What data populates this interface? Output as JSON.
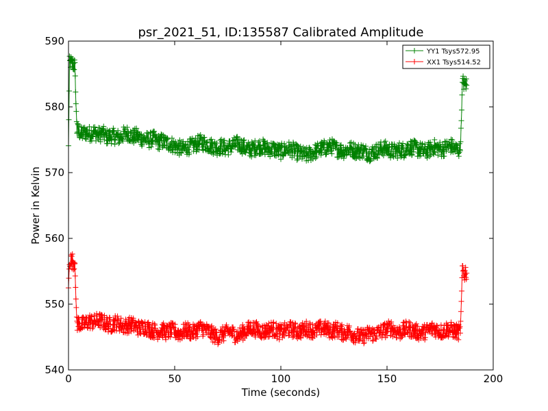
{
  "chart_data": {
    "type": "line",
    "title": "psr_2021_51, ID:135587 Calibrated Amplitude",
    "xlabel": "Time (seconds)",
    "ylabel": "Power in Kelvin",
    "xlim": [
      0,
      200
    ],
    "ylim": [
      540,
      590
    ],
    "xticks": [
      0,
      50,
      100,
      150,
      200
    ],
    "yticks": [
      540,
      550,
      560,
      570,
      580,
      590
    ],
    "grid": false,
    "legend_position": "top-right",
    "marker": "+",
    "series": [
      {
        "name": "YY1 Tsys572.95",
        "color": "#008000",
        "x": [
          0,
          0.5,
          1,
          1.5,
          2,
          2.5,
          3,
          3.5,
          4,
          5,
          6,
          8,
          10,
          12,
          14,
          16,
          18,
          20,
          22,
          24,
          26,
          28,
          30,
          32,
          34,
          36,
          38,
          40,
          42,
          44,
          46,
          48,
          50,
          52,
          54,
          56,
          58,
          60,
          62,
          64,
          66,
          68,
          70,
          72,
          74,
          76,
          78,
          80,
          82,
          84,
          86,
          88,
          90,
          92,
          94,
          96,
          98,
          100,
          102,
          104,
          106,
          108,
          110,
          112,
          114,
          116,
          118,
          120,
          122,
          124,
          126,
          128,
          130,
          132,
          134,
          136,
          138,
          140,
          142,
          144,
          146,
          148,
          150,
          152,
          154,
          156,
          158,
          160,
          162,
          164,
          166,
          168,
          170,
          172,
          174,
          176,
          178,
          180,
          182,
          184,
          184.5,
          185,
          185.5,
          186,
          186.5,
          187,
          187.5
        ],
        "values": [
          574,
          586.5,
          586.8,
          586.4,
          586.6,
          586.3,
          586.5,
          580.5,
          576.5,
          576.3,
          575.8,
          576.1,
          575.9,
          576.2,
          575.7,
          576,
          575.4,
          575.6,
          575.5,
          575.3,
          575.8,
          576,
          575.4,
          575.6,
          575.2,
          575.1,
          574.9,
          575.2,
          574.6,
          574.8,
          574.5,
          574.4,
          574,
          573.8,
          573.6,
          573.9,
          574,
          574.3,
          574.6,
          574.5,
          574.2,
          574,
          573.8,
          574,
          573.7,
          573.9,
          574.2,
          574.4,
          574,
          573.6,
          573.5,
          573.8,
          574,
          573.9,
          573.5,
          573.7,
          573.4,
          573.2,
          573.5,
          573.6,
          573.4,
          573,
          572.8,
          572.6,
          572.9,
          573.2,
          573.5,
          573.7,
          573.8,
          574,
          573.6,
          573.4,
          573.3,
          573.6,
          573.5,
          573.2,
          573.4,
          573.1,
          572.9,
          573.2,
          573.4,
          573.7,
          573.6,
          573.3,
          573.2,
          573.5,
          573.4,
          573.9,
          573.8,
          573.6,
          573.4,
          573.2,
          573.5,
          573.9,
          573.7,
          573.5,
          573.9,
          574.1,
          573.6,
          573.4,
          573.5,
          578,
          583.4,
          583.8,
          583.2,
          583.6,
          583.3
        ],
        "noise": 1.2
      },
      {
        "name": "XX1 Tsys514.52",
        "color": "#ff0000",
        "x": [
          0,
          0.5,
          1,
          1.5,
          2,
          2.5,
          3,
          3.5,
          4,
          5,
          6,
          8,
          10,
          12,
          14,
          16,
          18,
          20,
          22,
          24,
          26,
          28,
          30,
          32,
          34,
          36,
          38,
          40,
          42,
          44,
          46,
          48,
          50,
          52,
          54,
          56,
          58,
          60,
          62,
          64,
          66,
          68,
          70,
          72,
          74,
          76,
          78,
          80,
          82,
          84,
          86,
          88,
          90,
          92,
          94,
          96,
          98,
          100,
          102,
          104,
          106,
          108,
          110,
          112,
          114,
          116,
          118,
          120,
          122,
          124,
          126,
          128,
          130,
          132,
          134,
          136,
          138,
          140,
          142,
          144,
          146,
          148,
          150,
          152,
          154,
          156,
          158,
          160,
          162,
          164,
          166,
          168,
          170,
          172,
          174,
          176,
          178,
          180,
          182,
          184,
          184.5,
          185,
          185.5,
          186,
          186.5,
          187,
          187.5
        ],
        "values": [
          552.5,
          556.6,
          556.8,
          556.4,
          556.7,
          556.3,
          556.5,
          550.5,
          547,
          547.2,
          546.8,
          547.1,
          547.4,
          547.2,
          547.6,
          547.3,
          547,
          546.8,
          547.2,
          547,
          546.6,
          546.8,
          546.9,
          546.5,
          546.3,
          546.6,
          546.2,
          546,
          545.8,
          546.1,
          545.7,
          546,
          545.9,
          545.5,
          545.8,
          546.1,
          545.6,
          546,
          546.4,
          546.2,
          545.8,
          545.4,
          545,
          545.3,
          545.6,
          545.9,
          545.4,
          545.2,
          545.7,
          546,
          546.4,
          546.2,
          546,
          545.8,
          546.1,
          546.3,
          545.9,
          545.7,
          546,
          546.2,
          546.1,
          545.8,
          546,
          546.3,
          546.1,
          545.9,
          546.2,
          546.4,
          546.1,
          545.9,
          546.2,
          545.8,
          545.6,
          545.9,
          545.4,
          545.2,
          545,
          545.3,
          545.6,
          545.4,
          545.7,
          545.9,
          546.2,
          546.4,
          545.9,
          545.7,
          546.1,
          546.3,
          546,
          545.8,
          545.6,
          545.8,
          546.1,
          546.3,
          546,
          545.8,
          546.2,
          546.1,
          545.9,
          545.7,
          545.8,
          550.2,
          555.5,
          555,
          554.6,
          554.9,
          554.7
        ],
        "noise": 1.2
      }
    ]
  }
}
